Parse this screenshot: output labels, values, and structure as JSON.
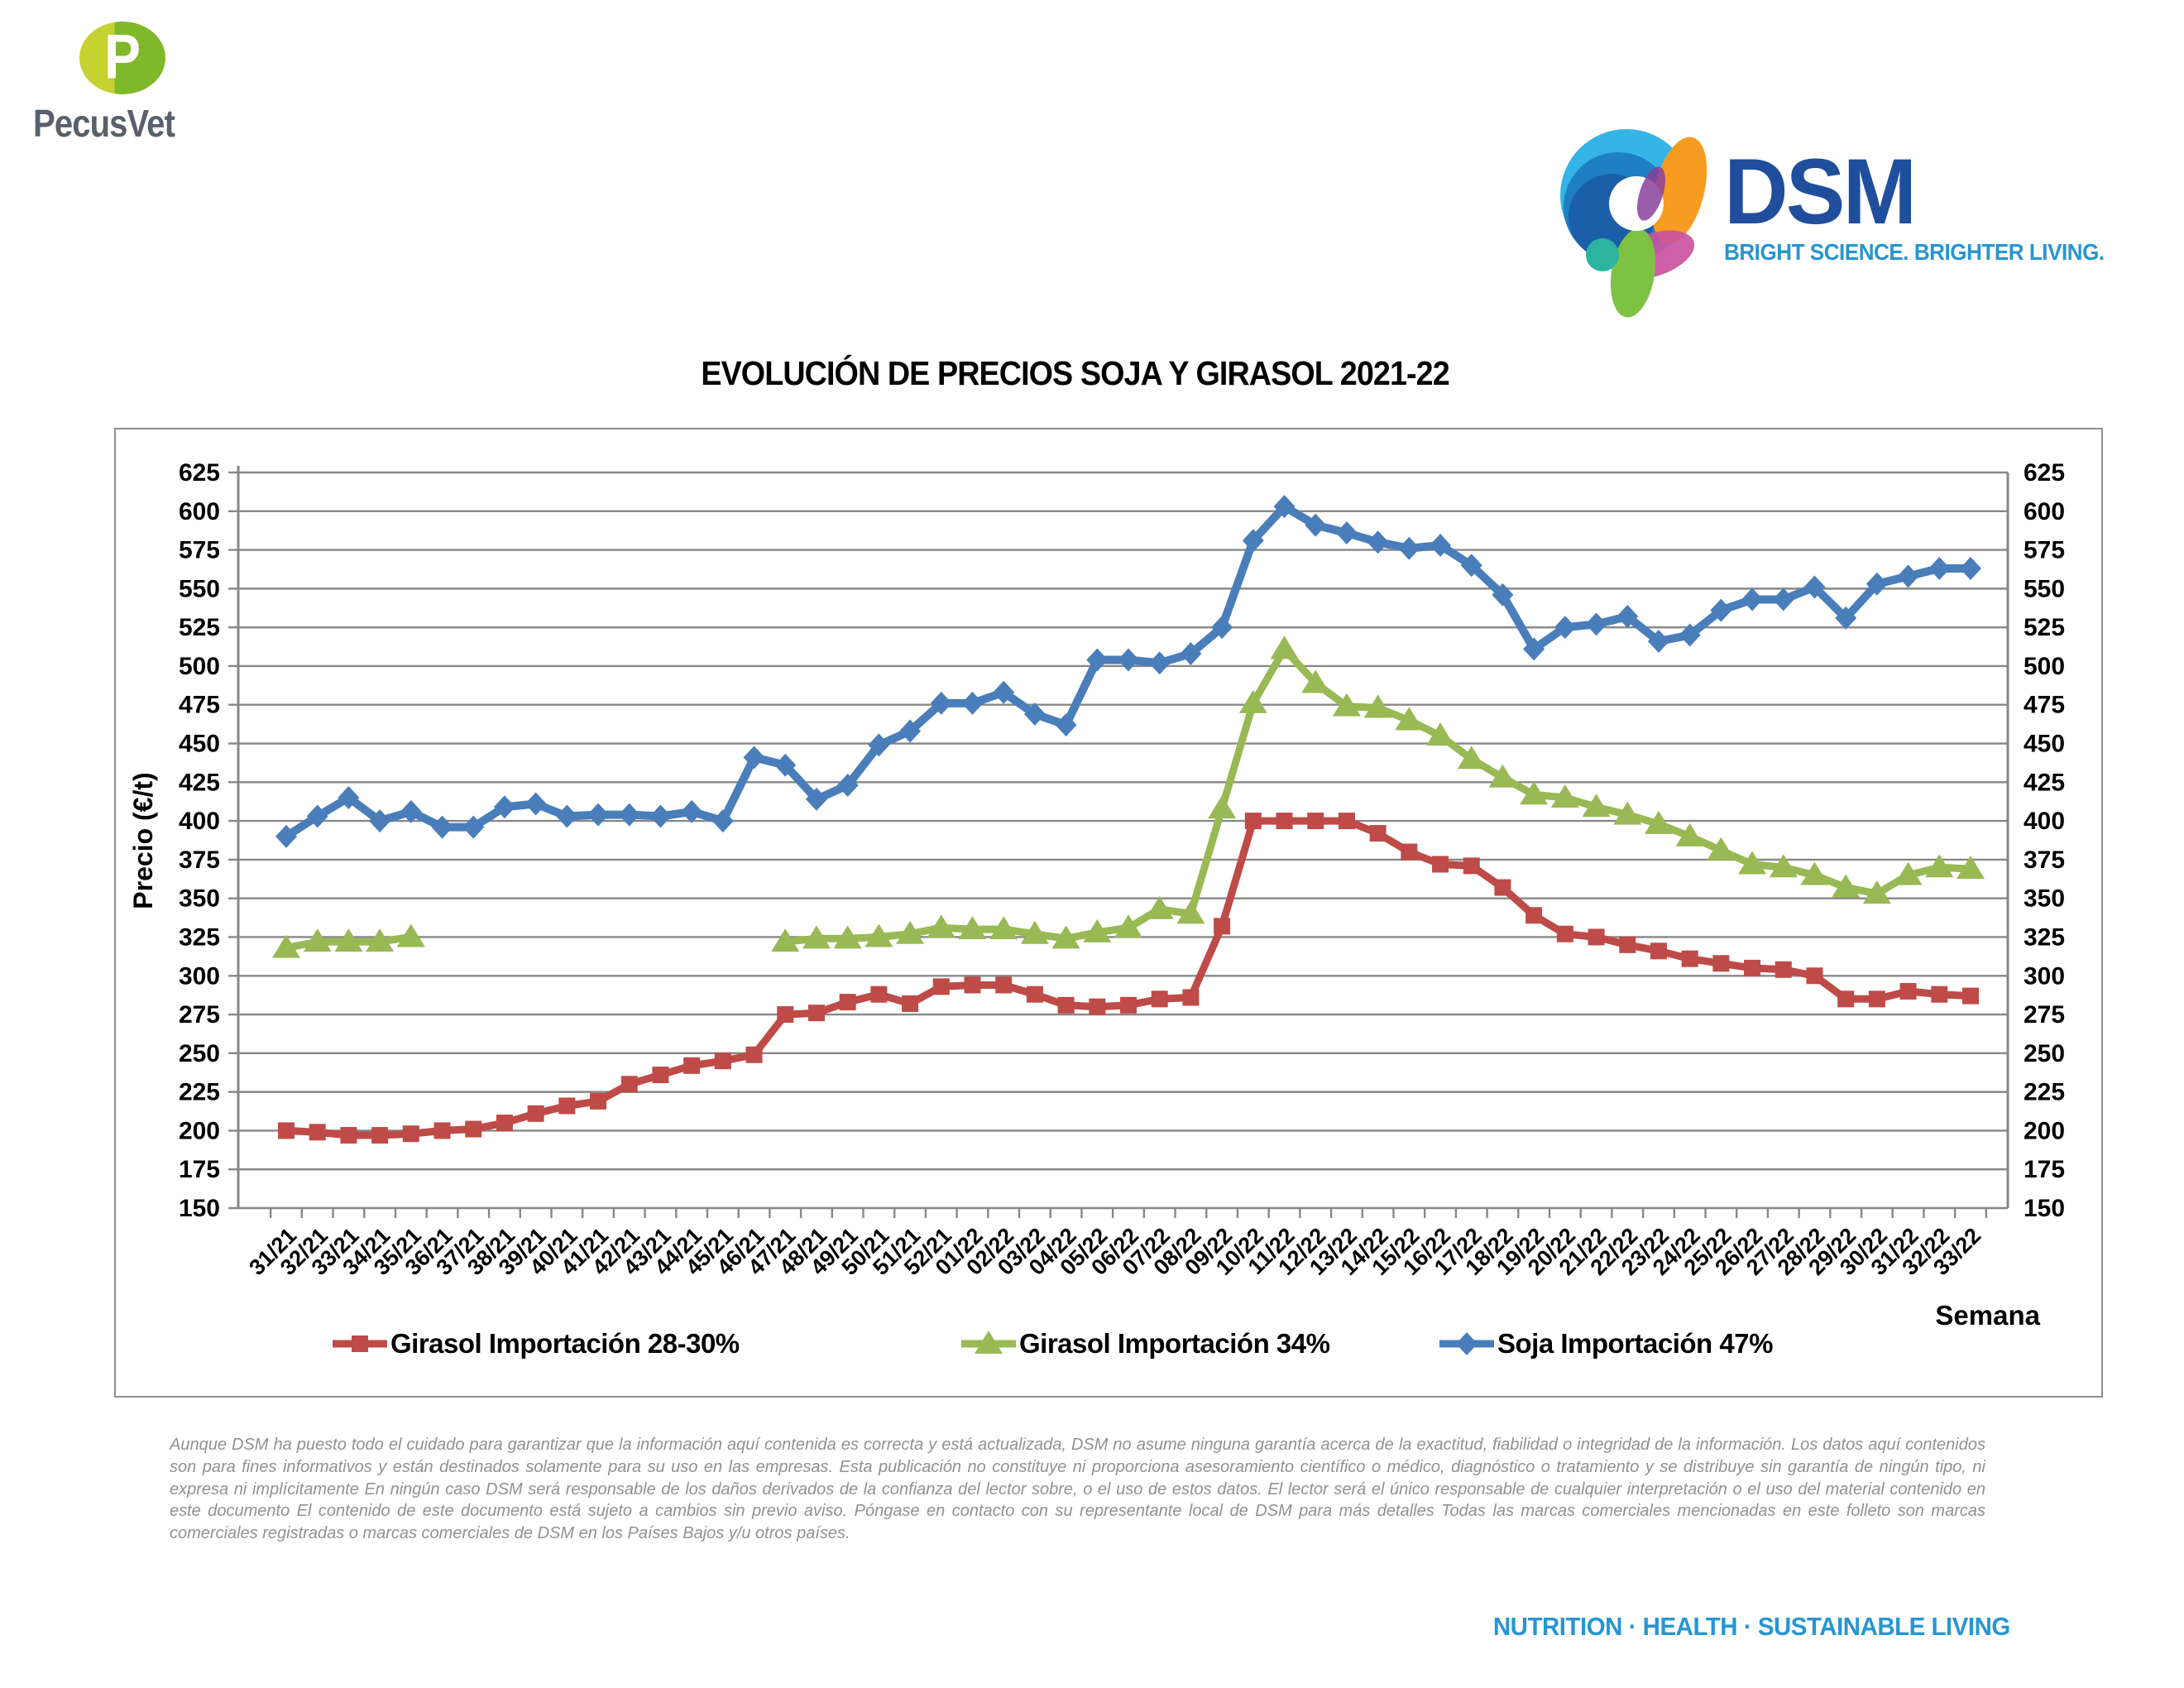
{
  "branding": {
    "pecusvet": {
      "monogram": "P",
      "name": "PecusVet"
    },
    "dsm": {
      "name": "DSM",
      "tagline": "BRIGHT SCIENCE. BRIGHTER LIVING."
    }
  },
  "chart": {
    "title": "EVOLUCIÓN DE PRECIOS SOJA Y GIRASOL 2021-22",
    "y_axis_label": "Precio (€/t)",
    "x_axis_label": "Semana"
  },
  "chart_data": {
    "type": "line",
    "title": "EVOLUCIÓN DE PRECIOS SOJA Y GIRASOL 2021-22",
    "xlabel": "Semana",
    "ylabel": "Precio (€/t)",
    "ylim": [
      150,
      625
    ],
    "ytick_step": 25,
    "grid": true,
    "legend_position": "bottom",
    "categories": [
      "31/21",
      "32/21",
      "33/21",
      "34/21",
      "35/21",
      "36/21",
      "37/21",
      "38/21",
      "39/21",
      "40/21",
      "41/21",
      "42/21",
      "43/21",
      "44/21",
      "45/21",
      "46/21",
      "47/21",
      "48/21",
      "49/21",
      "50/21",
      "51/21",
      "52/21",
      "01/22",
      "02/22",
      "03/22",
      "04/22",
      "05/22",
      "06/22",
      "07/22",
      "08/22",
      "09/22",
      "10/22",
      "11/22",
      "12/22",
      "13/22",
      "14/22",
      "15/22",
      "16/22",
      "17/22",
      "18/22",
      "19/22",
      "20/22",
      "21/22",
      "22/22",
      "23/22",
      "24/22",
      "25/22",
      "26/22",
      "27/22",
      "28/22",
      "29/22",
      "30/22",
      "31/22",
      "32/22",
      "33/22"
    ],
    "series": [
      {
        "name": "Girasol Importación 28-30%",
        "color": "#BE4B48",
        "marker": "square",
        "values": [
          200,
          199,
          197,
          197,
          198,
          200,
          201,
          205,
          211,
          216,
          219,
          230,
          236,
          242,
          245,
          249,
          275,
          276,
          283,
          288,
          282,
          293,
          294,
          294,
          288,
          281,
          280,
          281,
          285,
          286,
          332,
          400,
          400,
          400,
          400,
          392,
          380,
          372,
          371,
          357,
          339,
          327,
          325,
          320,
          316,
          311,
          308,
          305,
          304,
          300,
          285,
          285,
          290,
          288,
          287
        ]
      },
      {
        "name": "Girasol Importación 34%",
        "color": "#98B954",
        "marker": "triangle",
        "values": [
          318,
          322,
          322,
          322,
          325,
          null,
          null,
          null,
          null,
          null,
          null,
          null,
          null,
          null,
          null,
          null,
          322,
          324,
          324,
          325,
          327,
          331,
          330,
          330,
          327,
          324,
          328,
          331,
          343,
          340,
          408,
          476,
          511,
          489,
          474,
          473,
          465,
          455,
          440,
          428,
          417,
          415,
          409,
          404,
          398,
          390,
          381,
          372,
          370,
          365,
          357,
          353,
          365,
          370,
          369
        ]
      },
      {
        "name": "Soja Importación 47%",
        "color": "#4A7EBB",
        "marker": "diamond",
        "values": [
          390,
          403,
          415,
          400,
          406,
          396,
          396,
          409,
          411,
          403,
          404,
          404,
          403,
          406,
          400,
          441,
          436,
          414,
          423,
          449,
          458,
          476,
          476,
          483,
          469,
          462,
          504,
          504,
          502,
          508,
          525,
          581,
          603,
          591,
          586,
          580,
          576,
          578,
          565,
          546,
          511,
          525,
          527,
          532,
          516,
          520,
          536,
          543,
          543,
          551,
          531,
          553,
          558,
          563,
          563
        ]
      }
    ]
  },
  "disclaimer": "Aunque DSM ha puesto todo el cuidado para garantizar que la información aquí contenida es correcta y está actualizada, DSM no asume ninguna garantía acerca de la exactitud, fiabilidad o integridad de la información. Los datos aquí contenidos son para fines informativos y están destinados solamente para su uso en las empresas. Esta publicación no constituye ni proporciona asesoramiento científico o médico, diagnóstico o tratamiento y se distribuye sin garantía de ningún tipo, ni expresa ni implícitamente En ningún caso DSM será responsable de los daños derivados de la confianza del lector sobre, o el uso de estos datos. El lector será el único responsable de cualquier interpretación o el uso del material contenido en este documento El contenido de este documento está sujeto a cambios sin previo aviso. Póngase en contacto con su representante local de DSM para más detalles Todas las marcas comerciales mencionadas en este folleto son marcas comerciales registradas o marcas comerciales de DSM en los Países Bajos y/u otros países.",
  "footer": {
    "tagline": "NUTRITION · HEALTH · SUSTAINABLE LIVING"
  }
}
